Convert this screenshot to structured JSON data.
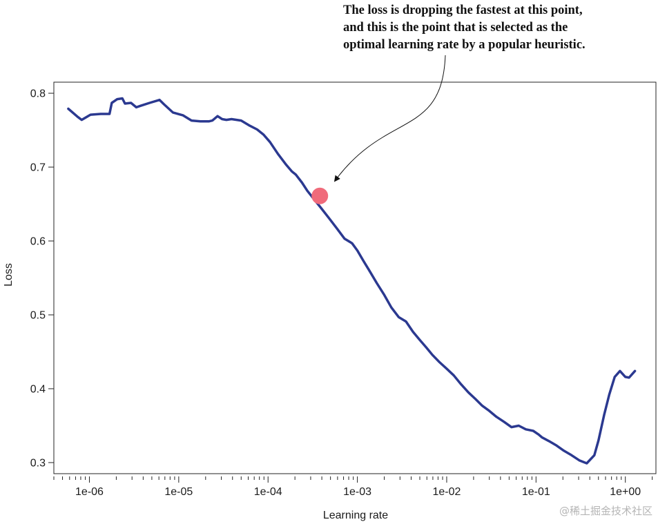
{
  "chart_data": {
    "type": "line",
    "xlabel": "Learning rate",
    "ylabel": "Loss",
    "xscale": "log",
    "xlim": [
      4e-07,
      2.2
    ],
    "ylim": [
      0.285,
      0.815
    ],
    "x_ticks": [
      {
        "value": 1e-06,
        "label": "1e-06"
      },
      {
        "value": 1e-05,
        "label": "1e-05"
      },
      {
        "value": 0.0001,
        "label": "1e-04"
      },
      {
        "value": 0.001,
        "label": "1e-03"
      },
      {
        "value": 0.01,
        "label": "1e-02"
      },
      {
        "value": 0.1,
        "label": "1e-01"
      },
      {
        "value": 1,
        "label": "1e+00"
      }
    ],
    "y_ticks": [
      {
        "value": 0.8,
        "label": "0.8"
      },
      {
        "value": 0.7,
        "label": "0.7"
      },
      {
        "value": 0.6,
        "label": "0.6"
      },
      {
        "value": 0.5,
        "label": "0.5"
      },
      {
        "value": 0.4,
        "label": "0.4"
      },
      {
        "value": 0.3,
        "label": "0.3"
      }
    ],
    "grid": false,
    "legend": "none",
    "series": [
      {
        "color": "#2b3990",
        "x": [
          5.8e-07,
          7.4e-07,
          8.2e-07,
          1.03e-06,
          1.34e-06,
          1.68e-06,
          1.78e-06,
          2.05e-06,
          2.34e-06,
          2.5e-06,
          2.92e-06,
          3.35e-06,
          3.75e-06,
          4.72e-06,
          6.1e-06,
          6.85e-06,
          8.6e-06,
          1.12e-05,
          1.39e-05,
          1.75e-05,
          2.19e-05,
          2.38e-05,
          2.72e-05,
          3.06e-05,
          3.42e-05,
          3.9e-05,
          5e-05,
          6.25e-05,
          7.55e-05,
          8.9e-05,
          0.000105,
          0.000129,
          0.00016,
          0.000185,
          0.000204,
          0.00024,
          0.000275,
          0.000335,
          0.00039,
          0.00048,
          0.00059,
          0.00072,
          0.00087,
          0.001,
          0.00117,
          0.00136,
          0.00165,
          0.002,
          0.0024,
          0.0029,
          0.0035,
          0.0042,
          0.005,
          0.0059,
          0.0069,
          0.0083,
          0.01,
          0.012,
          0.0145,
          0.0175,
          0.021,
          0.025,
          0.03,
          0.036,
          0.044,
          0.053,
          0.064,
          0.077,
          0.093,
          0.107,
          0.117,
          0.14,
          0.17,
          0.205,
          0.25,
          0.305,
          0.37,
          0.45,
          0.5,
          0.58,
          0.66,
          0.76,
          0.87,
          1.0,
          1.1,
          1.28
        ],
        "y": [
          0.779,
          0.768,
          0.764,
          0.771,
          0.772,
          0.772,
          0.787,
          0.792,
          0.793,
          0.786,
          0.787,
          0.781,
          0.783,
          0.787,
          0.791,
          0.785,
          0.774,
          0.77,
          0.763,
          0.762,
          0.762,
          0.763,
          0.769,
          0.765,
          0.764,
          0.765,
          0.763,
          0.756,
          0.751,
          0.744,
          0.734,
          0.718,
          0.703,
          0.694,
          0.69,
          0.679,
          0.668,
          0.655,
          0.645,
          0.631,
          0.617,
          0.603,
          0.597,
          0.587,
          0.573,
          0.56,
          0.543,
          0.527,
          0.51,
          0.497,
          0.491,
          0.477,
          0.466,
          0.456,
          0.446,
          0.436,
          0.427,
          0.418,
          0.406,
          0.395,
          0.386,
          0.377,
          0.37,
          0.362,
          0.355,
          0.348,
          0.35,
          0.345,
          0.343,
          0.338,
          0.334,
          0.329,
          0.323,
          0.316,
          0.31,
          0.303,
          0.299,
          0.31,
          0.33,
          0.365,
          0.392,
          0.416,
          0.424,
          0.416,
          0.415,
          0.424
        ]
      }
    ],
    "highlight_point": {
      "x": 0.00038,
      "y": 0.661,
      "color": "#f06b7b"
    },
    "annotation": {
      "lines": [
        "The loss is dropping the fastest at this point,",
        "and this is the point that is selected as the",
        "optimal learning rate by a popular heuristic."
      ]
    }
  },
  "watermark": "@稀土掘金技术社区"
}
